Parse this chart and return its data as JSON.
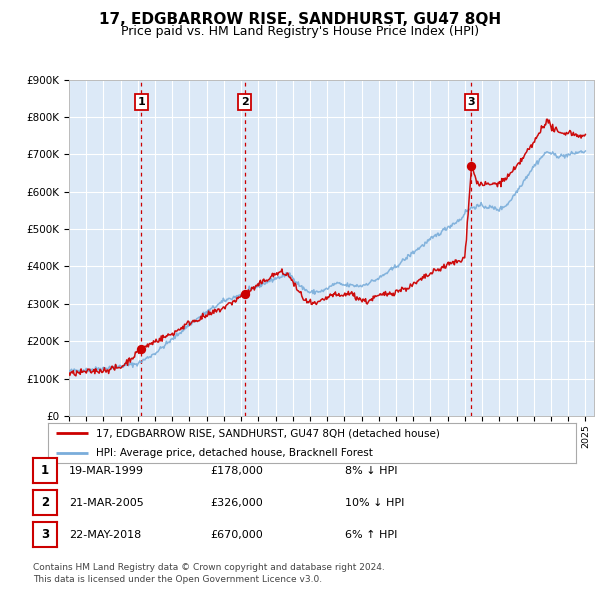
{
  "title": "17, EDGBARROW RISE, SANDHURST, GU47 8QH",
  "subtitle": "Price paid vs. HM Land Registry's House Price Index (HPI)",
  "background_color": "#ffffff",
  "plot_bg_color": "#dce9f7",
  "grid_color": "#ffffff",
  "title_fontsize": 11,
  "subtitle_fontsize": 9,
  "ylim": [
    0,
    900000
  ],
  "yticks": [
    0,
    100000,
    200000,
    300000,
    400000,
    500000,
    600000,
    700000,
    800000,
    900000
  ],
  "ytick_labels": [
    "£0",
    "£100K",
    "£200K",
    "£300K",
    "£400K",
    "£500K",
    "£600K",
    "£700K",
    "£800K",
    "£900K"
  ],
  "sale_prices": [
    178000,
    326000,
    670000
  ],
  "sale_labels": [
    "1",
    "2",
    "3"
  ],
  "vline_x": [
    1999.21,
    2005.21,
    2018.38
  ],
  "red_line_color": "#cc0000",
  "blue_line_color": "#7aadda",
  "vline_color": "#cc0000",
  "legend_label_red": "17, EDGBARROW RISE, SANDHURST, GU47 8QH (detached house)",
  "legend_label_blue": "HPI: Average price, detached house, Bracknell Forest",
  "table_rows": [
    {
      "num": "1",
      "date": "19-MAR-1999",
      "price": "£178,000",
      "hpi": "8% ↓ HPI"
    },
    {
      "num": "2",
      "date": "21-MAR-2005",
      "price": "£326,000",
      "hpi": "10% ↓ HPI"
    },
    {
      "num": "3",
      "date": "22-MAY-2018",
      "price": "£670,000",
      "hpi": "6% ↑ HPI"
    }
  ],
  "footer_line1": "Contains HM Land Registry data © Crown copyright and database right 2024.",
  "footer_line2": "This data is licensed under the Open Government Licence v3.0.",
  "xmin": 1995.0,
  "xmax": 2025.5,
  "hpi_anchors": [
    [
      1995.0,
      120000
    ],
    [
      1996.0,
      123000
    ],
    [
      1997.0,
      128000
    ],
    [
      1998.0,
      133000
    ],
    [
      1999.0,
      140000
    ],
    [
      2000.0,
      168000
    ],
    [
      2001.0,
      205000
    ],
    [
      2002.0,
      245000
    ],
    [
      2003.0,
      278000
    ],
    [
      2004.0,
      308000
    ],
    [
      2005.0,
      325000
    ],
    [
      2006.0,
      348000
    ],
    [
      2007.0,
      368000
    ],
    [
      2007.8,
      380000
    ],
    [
      2008.5,
      345000
    ],
    [
      2009.0,
      330000
    ],
    [
      2009.8,
      335000
    ],
    [
      2010.5,
      355000
    ],
    [
      2011.0,
      350000
    ],
    [
      2012.0,
      348000
    ],
    [
      2013.0,
      368000
    ],
    [
      2014.0,
      400000
    ],
    [
      2015.0,
      438000
    ],
    [
      2016.0,
      472000
    ],
    [
      2017.0,
      505000
    ],
    [
      2017.8,
      528000
    ],
    [
      2018.0,
      545000
    ],
    [
      2018.5,
      560000
    ],
    [
      2019.0,
      562000
    ],
    [
      2019.5,
      558000
    ],
    [
      2020.0,
      552000
    ],
    [
      2020.5,
      568000
    ],
    [
      2021.0,
      600000
    ],
    [
      2021.5,
      635000
    ],
    [
      2022.0,
      668000
    ],
    [
      2022.5,
      695000
    ],
    [
      2022.8,
      708000
    ],
    [
      2023.0,
      702000
    ],
    [
      2023.5,
      695000
    ],
    [
      2024.0,
      698000
    ],
    [
      2024.5,
      705000
    ],
    [
      2025.0,
      708000
    ]
  ],
  "red_anchors": [
    [
      1995.0,
      112000
    ],
    [
      1996.0,
      118000
    ],
    [
      1997.0,
      122000
    ],
    [
      1998.0,
      130000
    ],
    [
      1999.21,
      178000
    ],
    [
      2000.0,
      200000
    ],
    [
      2001.0,
      220000
    ],
    [
      2002.0,
      250000
    ],
    [
      2003.0,
      268000
    ],
    [
      2004.0,
      290000
    ],
    [
      2005.21,
      326000
    ],
    [
      2006.0,
      350000
    ],
    [
      2006.8,
      375000
    ],
    [
      2007.3,
      385000
    ],
    [
      2007.8,
      375000
    ],
    [
      2008.3,
      335000
    ],
    [
      2008.8,
      305000
    ],
    [
      2009.3,
      298000
    ],
    [
      2009.8,
      310000
    ],
    [
      2010.3,
      325000
    ],
    [
      2010.8,
      320000
    ],
    [
      2011.3,
      330000
    ],
    [
      2011.8,
      315000
    ],
    [
      2012.3,
      305000
    ],
    [
      2012.8,
      318000
    ],
    [
      2013.3,
      325000
    ],
    [
      2013.8,
      330000
    ],
    [
      2014.3,
      338000
    ],
    [
      2014.8,
      345000
    ],
    [
      2015.3,
      360000
    ],
    [
      2015.8,
      375000
    ],
    [
      2016.3,
      388000
    ],
    [
      2016.8,
      400000
    ],
    [
      2017.3,
      410000
    ],
    [
      2017.8,
      415000
    ],
    [
      2018.0,
      425000
    ],
    [
      2018.38,
      670000
    ],
    [
      2018.7,
      625000
    ],
    [
      2019.0,
      618000
    ],
    [
      2019.5,
      620000
    ],
    [
      2020.0,
      622000
    ],
    [
      2020.5,
      640000
    ],
    [
      2021.0,
      665000
    ],
    [
      2021.5,
      700000
    ],
    [
      2022.0,
      730000
    ],
    [
      2022.5,
      775000
    ],
    [
      2022.8,
      790000
    ],
    [
      2023.0,
      775000
    ],
    [
      2023.5,
      755000
    ],
    [
      2024.0,
      760000
    ],
    [
      2024.5,
      752000
    ],
    [
      2025.0,
      748000
    ]
  ]
}
